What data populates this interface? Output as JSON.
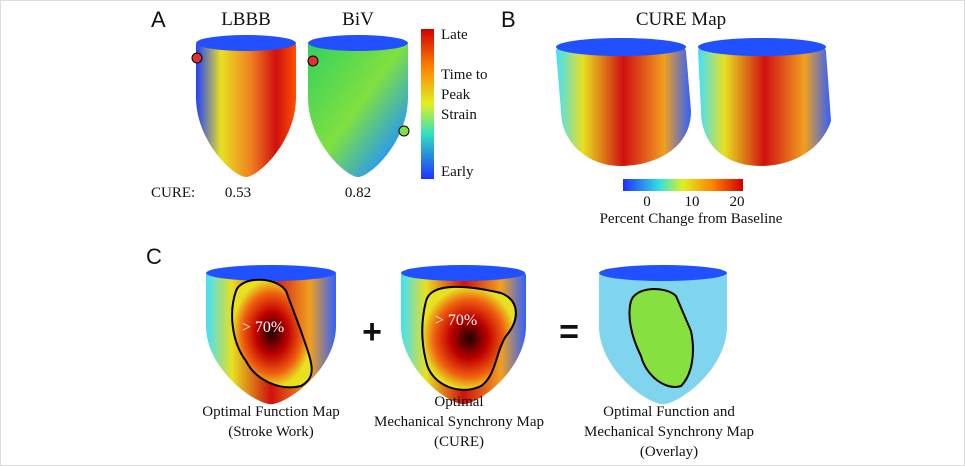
{
  "panel_a": {
    "label": "A",
    "titles": [
      "LBBB",
      "BiV"
    ],
    "colorbar": {
      "top": "Late",
      "middle": "Time to Peak Strain",
      "bottom": "Early"
    },
    "cure_label": "CURE:",
    "cure_values": [
      0.53,
      0.82
    ]
  },
  "panel_b": {
    "label": "B",
    "title": "CURE Map",
    "colorbar_ticks": [
      0,
      10,
      20
    ],
    "colorbar_label": "Percent Change from Baseline"
  },
  "panel_c": {
    "label": "C",
    "region_labels": [
      "> 70%",
      "> 70%"
    ],
    "operators": [
      "+",
      "="
    ],
    "captions": [
      [
        "Optimal Function Map",
        "(Stroke Work)"
      ],
      [
        "Optimal",
        "Mechanical Synchrony Map",
        "(CURE)"
      ],
      [
        "Optimal Function and",
        "Mechanical Synchrony Map",
        "(Overlay)"
      ]
    ]
  }
}
